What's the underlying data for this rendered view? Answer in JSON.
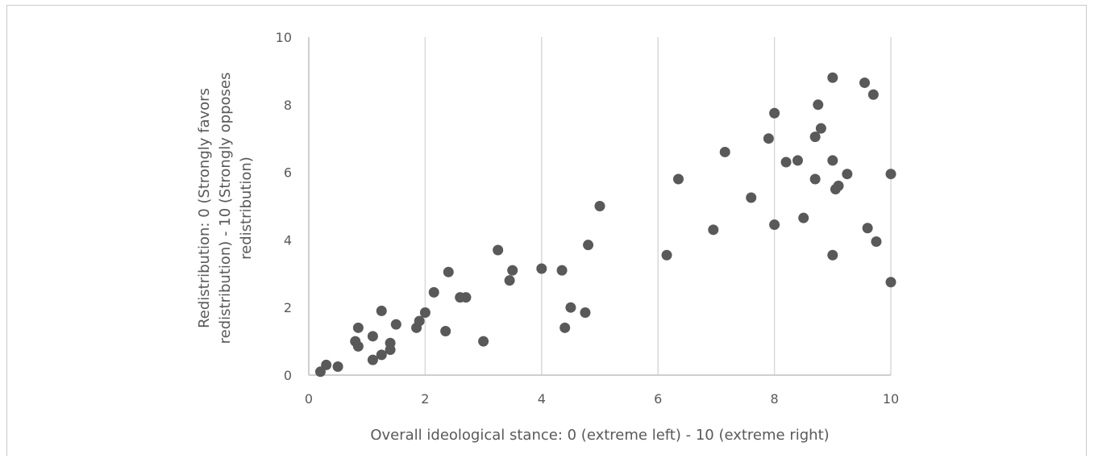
{
  "chart_data": {
    "type": "scatter",
    "xlabel": "Overall ideological stance: 0 (extreme  left) - 10 (extreme  right)",
    "ylabel_lines": [
      "Redistribution: 0 (Strongly favors",
      "redistribution) - 10 (Strongly opposes",
      "redistribution)"
    ],
    "xlim": [
      0,
      10
    ],
    "ylim": [
      0,
      10
    ],
    "xticks": [
      0,
      2,
      4,
      6,
      8,
      10
    ],
    "yticks": [
      0,
      2,
      4,
      6,
      8,
      10
    ],
    "grid": "vertical",
    "marker_color": "#595959",
    "points": [
      [
        0.2,
        0.1
      ],
      [
        0.3,
        0.3
      ],
      [
        0.5,
        0.25
      ],
      [
        0.8,
        1.0
      ],
      [
        0.85,
        0.85
      ],
      [
        0.85,
        1.4
      ],
      [
        1.1,
        0.45
      ],
      [
        1.1,
        1.15
      ],
      [
        1.25,
        0.6
      ],
      [
        1.25,
        1.9
      ],
      [
        1.4,
        0.75
      ],
      [
        1.4,
        0.95
      ],
      [
        1.5,
        1.5
      ],
      [
        1.85,
        1.4
      ],
      [
        1.9,
        1.6
      ],
      [
        2.0,
        1.85
      ],
      [
        2.15,
        2.45
      ],
      [
        2.35,
        1.3
      ],
      [
        2.4,
        3.05
      ],
      [
        2.6,
        2.3
      ],
      [
        2.7,
        2.3
      ],
      [
        3.0,
        1.0
      ],
      [
        3.25,
        3.7
      ],
      [
        3.45,
        2.8
      ],
      [
        3.5,
        3.1
      ],
      [
        4.0,
        3.15
      ],
      [
        4.35,
        3.1
      ],
      [
        4.4,
        1.4
      ],
      [
        4.5,
        2.0
      ],
      [
        4.75,
        1.85
      ],
      [
        4.8,
        3.85
      ],
      [
        5.0,
        5.0
      ],
      [
        6.15,
        3.55
      ],
      [
        6.35,
        5.8
      ],
      [
        6.95,
        4.3
      ],
      [
        7.15,
        6.6
      ],
      [
        7.6,
        5.25
      ],
      [
        7.9,
        7.0
      ],
      [
        8.0,
        7.75
      ],
      [
        8.0,
        4.45
      ],
      [
        8.2,
        6.3
      ],
      [
        8.4,
        6.35
      ],
      [
        8.5,
        4.65
      ],
      [
        8.7,
        7.05
      ],
      [
        8.7,
        5.8
      ],
      [
        8.75,
        8.0
      ],
      [
        8.8,
        7.3
      ],
      [
        9.0,
        8.8
      ],
      [
        9.0,
        6.35
      ],
      [
        9.0,
        3.55
      ],
      [
        9.05,
        5.5
      ],
      [
        9.1,
        5.6
      ],
      [
        9.25,
        5.95
      ],
      [
        9.55,
        8.65
      ],
      [
        9.6,
        4.35
      ],
      [
        9.7,
        8.3
      ],
      [
        9.75,
        3.95
      ],
      [
        10.0,
        5.95
      ],
      [
        10.0,
        2.75
      ]
    ]
  }
}
